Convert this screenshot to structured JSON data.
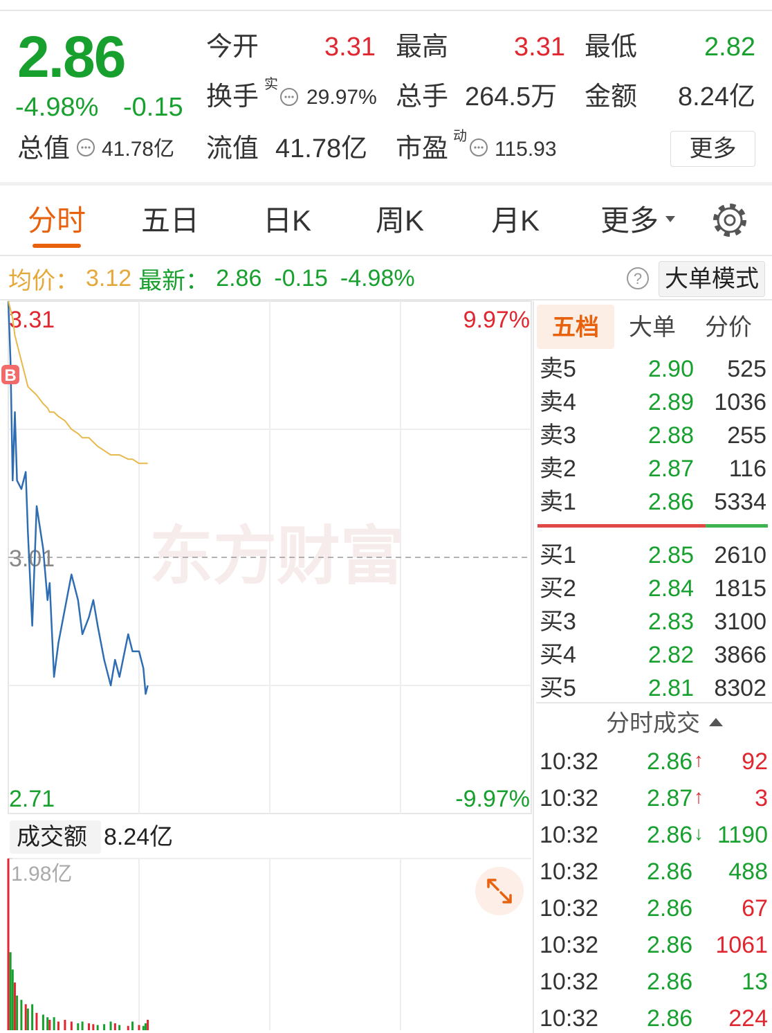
{
  "header": {
    "price": "2.86",
    "change_pct": "-4.98%",
    "change": "-0.15",
    "stats": [
      {
        "label": "今开",
        "value": "3.31",
        "color": "#e0262f"
      },
      {
        "label": "最高",
        "value": "3.31",
        "color": "#e0262f"
      },
      {
        "label": "最低",
        "value": "2.82",
        "color": "#18a02f"
      },
      {
        "label": "换手",
        "sup": "实",
        "value": "29.97%"
      },
      {
        "label": "总手",
        "value": "264.5万"
      },
      {
        "label": "金额",
        "value": "8.24亿"
      },
      {
        "label": "总值",
        "value": "41.78亿"
      },
      {
        "label": "流值",
        "value": "41.78亿"
      },
      {
        "label": "市盈",
        "sup": "动",
        "value": "115.93"
      }
    ],
    "more": "更多"
  },
  "tabs": {
    "items": [
      "分时",
      "五日",
      "日K",
      "周K",
      "月K",
      "更多"
    ],
    "active": 0
  },
  "info_bar": {
    "avg_label": "均价：",
    "avg": "3.12",
    "latest_label": "最新：",
    "latest": "2.86",
    "change": "-0.15",
    "change_pct": "-4.98%",
    "help": "?",
    "mode": "大单模式"
  },
  "chart_data": [
    {
      "type": "line",
      "watermark": "东方财富",
      "xlim": [
        0,
        240
      ],
      "ylim": [
        2.71,
        3.31
      ],
      "yticks": [
        3.31,
        3.01,
        2.71
      ],
      "y2lim": [
        -9.97,
        9.97
      ],
      "y2ticks": [
        {
          "value": 9.97,
          "label": "9.97%"
        },
        {
          "value": -9.97,
          "label": "-9.97%"
        }
      ],
      "x": [
        0,
        1,
        2,
        3,
        4,
        6,
        8,
        9,
        11,
        13,
        16,
        18,
        19,
        21,
        23,
        26,
        29,
        32,
        34,
        37,
        39,
        41,
        44,
        47,
        49,
        51,
        55,
        57,
        60,
        62,
        63,
        64
      ],
      "series": [
        {
          "name": "最新",
          "color": "#2f6db3",
          "values": [
            3.31,
            3.24,
            3.1,
            3.18,
            3.1,
            3.09,
            3.11,
            3.04,
            2.93,
            3.07,
            3.02,
            2.96,
            2.98,
            2.87,
            2.91,
            2.95,
            2.99,
            2.96,
            2.92,
            2.94,
            2.96,
            2.93,
            2.89,
            2.86,
            2.89,
            2.87,
            2.92,
            2.9,
            2.9,
            2.88,
            2.85,
            2.86
          ]
        },
        {
          "name": "均价",
          "color": "#e8b84a",
          "values": [
            3.31,
            3.3,
            3.29,
            3.27,
            3.26,
            3.24,
            3.22,
            3.21,
            3.205,
            3.2,
            3.19,
            3.185,
            3.18,
            3.18,
            3.175,
            3.17,
            3.16,
            3.155,
            3.15,
            3.15,
            3.145,
            3.14,
            3.135,
            3.13,
            3.13,
            3.13,
            3.125,
            3.125,
            3.12,
            3.12,
            3.12,
            3.12
          ]
        }
      ],
      "annotations": [
        {
          "x": 0,
          "label": "B"
        }
      ]
    },
    {
      "type": "bar",
      "title": "成交额",
      "total": "8.24亿",
      "xlim": [
        0,
        240
      ],
      "ylim": [
        0,
        1.98
      ],
      "yticks": [
        {
          "value": 1.98,
          "label": "1.98亿"
        }
      ],
      "up_color": "#e0262f",
      "down_color": "#18a02f",
      "x": [
        0,
        1,
        2,
        3,
        4,
        6,
        8,
        9,
        11,
        13,
        16,
        18,
        19,
        21,
        23,
        26,
        29,
        32,
        34,
        37,
        39,
        41,
        44,
        47,
        49,
        51,
        55,
        57,
        60,
        62,
        63,
        64
      ],
      "values": [
        1.98,
        0.9,
        0.7,
        0.55,
        0.4,
        0.35,
        0.3,
        0.25,
        0.3,
        0.2,
        0.18,
        0.15,
        0.12,
        0.15,
        0.1,
        0.12,
        0.1,
        0.08,
        0.1,
        0.08,
        0.07,
        0.06,
        0.07,
        0.1,
        0.08,
        0.06,
        0.05,
        0.1,
        0.06,
        0.05,
        0.08,
        0.12
      ]
    }
  ],
  "order_book": {
    "tabs": [
      "五档",
      "大单",
      "分价"
    ],
    "active": 0,
    "asks": [
      {
        "label": "卖5",
        "price": "2.90",
        "volume": 525
      },
      {
        "label": "卖4",
        "price": "2.89",
        "volume": 1036
      },
      {
        "label": "卖3",
        "price": "2.88",
        "volume": 255
      },
      {
        "label": "卖2",
        "price": "2.87",
        "volume": 116
      },
      {
        "label": "卖1",
        "price": "2.86",
        "volume": 5334
      }
    ],
    "bids": [
      {
        "label": "买1",
        "price": "2.85",
        "volume": 2610
      },
      {
        "label": "买2",
        "price": "2.84",
        "volume": 1815
      },
      {
        "label": "买3",
        "price": "2.83",
        "volume": 3100
      },
      {
        "label": "买4",
        "price": "2.82",
        "volume": 3866
      },
      {
        "label": "买5",
        "price": "2.81",
        "volume": 8302
      }
    ]
  },
  "trades": {
    "title": "分时成交",
    "rows": [
      {
        "time": "10:32",
        "price": "2.86",
        "arrow": "↑",
        "volume": 92,
        "color": "#e0262f"
      },
      {
        "time": "10:32",
        "price": "2.87",
        "arrow": "↑",
        "volume": 3,
        "color": "#e0262f"
      },
      {
        "time": "10:32",
        "price": "2.86",
        "arrow": "↓",
        "volume": 1190,
        "color": "#18a02f"
      },
      {
        "time": "10:32",
        "price": "2.86",
        "volume": 488,
        "color": "#18a02f"
      },
      {
        "time": "10:32",
        "price": "2.86",
        "volume": 67,
        "color": "#e0262f"
      },
      {
        "time": "10:32",
        "price": "2.86",
        "volume": 1061,
        "color": "#e0262f"
      },
      {
        "time": "10:32",
        "price": "2.86",
        "volume": 13,
        "color": "#18a02f"
      },
      {
        "time": "10:32",
        "price": "2.86",
        "volume": 224,
        "color": "#e0262f"
      }
    ]
  }
}
